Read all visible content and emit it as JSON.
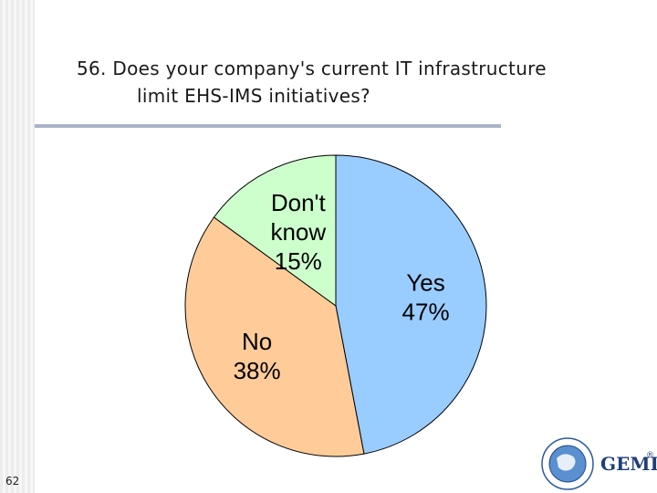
{
  "slide": {
    "number": "62",
    "title_line1": "56.  Does your company's current IT infrastructure",
    "title_line2": "limit EHS-IMS initiatives?"
  },
  "logo": {
    "text": "GEMI",
    "mark": "®"
  },
  "chart_data": {
    "type": "pie",
    "title": "56.  Does your company's current IT infrastructure limit EHS-IMS initiatives?",
    "slices": [
      {
        "label": "Yes",
        "value": 47,
        "percent_label": "47%",
        "color": "#99ccff"
      },
      {
        "label": "No",
        "value": 38,
        "percent_label": "38%",
        "color": "#ffcc99"
      },
      {
        "label": "Don't know",
        "value": 15,
        "percent_label": "15%",
        "color": "#ccffcc"
      }
    ],
    "legend": "none",
    "start": "top",
    "direction": "clockwise"
  }
}
